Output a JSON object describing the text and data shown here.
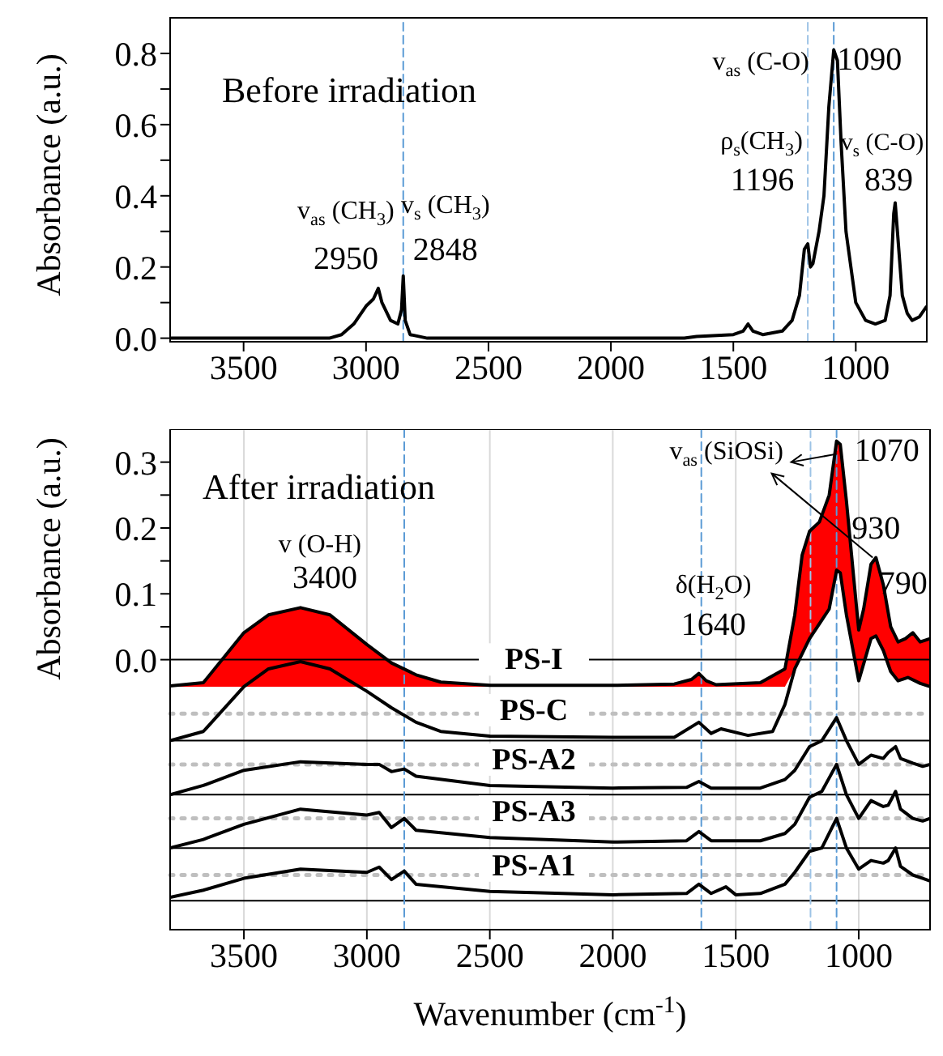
{
  "chart_data": [
    {
      "type": "line",
      "ylabel": "Absorbance (a.u.)",
      "xlim": [
        3800,
        710
      ],
      "xticks": [
        3500,
        3000,
        2500,
        2000,
        1500,
        1000
      ],
      "ylim": [
        -0.01,
        0.9
      ],
      "yticks": [
        {
          "value": 0,
          "label": "0.0"
        },
        {
          "value": 0.1,
          "label": null
        },
        {
          "value": 0.2,
          "label": "0.2"
        },
        {
          "value": 0.3,
          "label": null
        },
        {
          "value": 0.4,
          "label": "0.4"
        },
        {
          "value": 0.5,
          "label": null
        },
        {
          "value": 0.6,
          "label": "0.6"
        },
        {
          "value": 0.7,
          "label": null
        },
        {
          "value": 0.8,
          "label": "0.8"
        }
      ],
      "x": [
        3800,
        3500,
        3150,
        3100,
        3050,
        3000,
        2970,
        2950,
        2935,
        2900,
        2870,
        2855,
        2848,
        2840,
        2820,
        2750,
        2000,
        1700,
        1650,
        1500,
        1460,
        1440,
        1420,
        1380,
        1300,
        1260,
        1230,
        1210,
        1196,
        1185,
        1175,
        1150,
        1130,
        1110,
        1090,
        1075,
        1060,
        1040,
        1000,
        960,
        920,
        880,
        860,
        845,
        839,
        830,
        810,
        790,
        770,
        740,
        720,
        710
      ],
      "series": [
        {
          "color": "#000000",
          "values": [
            0.0,
            0.0,
            0.0,
            0.01,
            0.04,
            0.09,
            0.11,
            0.14,
            0.1,
            0.05,
            0.04,
            0.08,
            0.175,
            0.05,
            0.01,
            0.0,
            0.0,
            0.0,
            0.005,
            0.01,
            0.02,
            0.04,
            0.02,
            0.01,
            0.02,
            0.05,
            0.12,
            0.25,
            0.265,
            0.2,
            0.21,
            0.3,
            0.4,
            0.65,
            0.81,
            0.78,
            0.55,
            0.3,
            0.1,
            0.05,
            0.04,
            0.05,
            0.12,
            0.35,
            0.38,
            0.3,
            0.12,
            0.07,
            0.05,
            0.06,
            0.08,
            0.09
          ]
        }
      ],
      "ref_lines": [
        {
          "axis": "x",
          "value": 2848,
          "color": "#5b9bd5",
          "line_style": "dashed"
        },
        {
          "axis": "x",
          "value": 1196,
          "color": "#9dc3e6",
          "line_style": "dashed"
        },
        {
          "axis": "x",
          "value": 1090,
          "color": "#5b9bd5",
          "line_style": "dashed"
        }
      ],
      "annotations": [
        "Before irradiation",
        {
          "text": "v$_{as}$ (CH$_{3}$)",
          "x": 2950,
          "y": 0.14
        },
        {
          "text": "2950",
          "x": 2950,
          "y": 0.14
        },
        {
          "text": "v$_{s}$ (CH$_{3}$)",
          "x": 2848,
          "y": 0.175
        },
        {
          "text": "2848",
          "x": 2848,
          "y": 0.175
        },
        "ρ$_{s}$(CH$_{3}$)",
        {
          "text": "1196",
          "x": 1196,
          "y": 0.265
        },
        {
          "text": "v$_{as}$ (C-O)",
          "x": 1090,
          "y": 0.81
        },
        {
          "text": "1090",
          "x": 1090,
          "y": 0.81
        },
        {
          "text": "v$_{s}$ (C-O)",
          "x": 839,
          "y": 0.38
        },
        {
          "text": "839",
          "x": 839,
          "y": 0.38
        }
      ]
    },
    {
      "type": "line",
      "xlabel": "Wavenumber (cm$^{-1}$)",
      "ylabel": "Absorbance (a.u.)",
      "xlim": [
        3800,
        710
      ],
      "xticks": [
        3500,
        3000,
        2500,
        2000,
        1500,
        1000
      ],
      "ylim": [
        -0.41,
        0.35
      ],
      "grid": "x",
      "yticks": [
        {
          "value": 0,
          "label": "0.0"
        },
        {
          "value": 0.05,
          "label": null
        },
        {
          "value": 0.1,
          "label": "0.1"
        },
        {
          "value": 0.15,
          "label": null
        },
        {
          "value": 0.2,
          "label": "0.2"
        },
        {
          "value": 0.25,
          "label": null
        },
        {
          "value": 0.3,
          "label": "0.3"
        }
      ],
      "x": [
        3800,
        3665,
        3500,
        3400,
        3270,
        3150,
        3000,
        2900,
        2800,
        2700,
        2500,
        2000,
        1750,
        1680,
        1650,
        1620,
        1580,
        1400,
        1300,
        1260,
        1230,
        1200,
        1160,
        1120,
        1090,
        1075,
        1050,
        1020,
        1000,
        980,
        950,
        930,
        900,
        870,
        840,
        810,
        780,
        750,
        710
      ],
      "series": [
        {
          "name": "PS-I",
          "color": "#000000",
          "values": [
            -0.04,
            -0.035,
            0.041,
            0.068,
            0.079,
            0.068,
            0.023,
            -0.005,
            -0.023,
            -0.034,
            -0.039,
            -0.039,
            -0.037,
            -0.03,
            -0.021,
            -0.032,
            -0.038,
            -0.035,
            -0.014,
            0.068,
            0.159,
            0.195,
            0.209,
            0.25,
            0.332,
            0.327,
            0.241,
            0.123,
            0.045,
            0.077,
            0.145,
            0.155,
            0.114,
            0.05,
            0.027,
            0.032,
            0.041,
            0.027,
            0.032
          ],
          "upper": [
            -0.04,
            -0.035,
            0.041,
            0.068,
            0.079,
            0.068,
            0.023,
            -0.005,
            -0.023,
            -0.034,
            -0.039,
            -0.039,
            -0.037,
            -0.03,
            -0.021,
            -0.032,
            -0.038,
            -0.035,
            -0.014,
            0.068,
            0.159,
            0.195,
            0.209,
            0.25,
            0.332,
            0.327,
            0.241,
            0.123,
            0.045,
            0.077,
            0.145,
            0.155,
            0.114,
            0.05,
            0.027,
            0.032,
            0.041,
            0.027,
            0.032
          ],
          "lower": [
            -0.041,
            -0.041,
            -0.041,
            -0.041,
            -0.041,
            -0.041,
            -0.041,
            -0.041,
            -0.041,
            -0.041,
            -0.041,
            -0.041,
            -0.041,
            -0.041,
            -0.041,
            -0.041,
            -0.041,
            -0.041,
            -0.041,
            -0.014,
            0.01,
            0.032,
            0.055,
            0.077,
            0.136,
            0.132,
            0.068,
            0.0,
            -0.032,
            0.0,
            0.032,
            0.036,
            0.014,
            -0.018,
            -0.032,
            -0.028,
            -0.031,
            -0.036,
            -0.041
          ]
        },
        {
          "name": "PS-C",
          "color": "#000000",
          "x": [
            3800,
            3665,
            3500,
            3400,
            3270,
            3150,
            3000,
            2900,
            2800,
            2700,
            2500,
            2000,
            1750,
            1650,
            1600,
            1560,
            1450,
            1350,
            1300,
            1260,
            1200,
            1120,
            1090,
            1075,
            1050,
            1000,
            950,
            930,
            900,
            870,
            840,
            800,
            750,
            710
          ],
          "values": [
            -0.123,
            -0.109,
            -0.041,
            -0.014,
            -0.003,
            -0.014,
            -0.048,
            -0.073,
            -0.095,
            -0.109,
            -0.116,
            -0.118,
            -0.118,
            -0.095,
            -0.112,
            -0.105,
            -0.115,
            -0.109,
            -0.068,
            -0.014,
            0.032,
            0.077,
            0.136,
            0.132,
            0.068,
            -0.032,
            0.032,
            0.036,
            0.014,
            -0.018,
            -0.032,
            -0.027,
            -0.036,
            -0.041
          ]
        },
        {
          "name": "PS-A2",
          "color": "#000000",
          "x": [
            3800,
            3665,
            3500,
            3270,
            3000,
            2950,
            2900,
            2848,
            2800,
            2500,
            2000,
            1700,
            1650,
            1600,
            1400,
            1300,
            1260,
            1200,
            1150,
            1090,
            1050,
            1000,
            950,
            900,
            880,
            850,
            830,
            780,
            740,
            710
          ],
          "values": [
            -0.205,
            -0.191,
            -0.168,
            -0.155,
            -0.159,
            -0.159,
            -0.17,
            -0.166,
            -0.177,
            -0.191,
            -0.195,
            -0.194,
            -0.185,
            -0.195,
            -0.195,
            -0.182,
            -0.168,
            -0.132,
            -0.123,
            -0.088,
            -0.123,
            -0.159,
            -0.145,
            -0.15,
            -0.141,
            -0.132,
            -0.15,
            -0.157,
            -0.162,
            -0.159
          ]
        },
        {
          "name": "PS-A3",
          "color": "#000000",
          "x": [
            3800,
            3665,
            3500,
            3270,
            3000,
            2950,
            2900,
            2848,
            2800,
            2500,
            2000,
            1700,
            1650,
            1600,
            1400,
            1300,
            1260,
            1200,
            1150,
            1090,
            1050,
            1000,
            950,
            900,
            880,
            850,
            830,
            780,
            740,
            710
          ],
          "values": [
            -0.286,
            -0.273,
            -0.25,
            -0.227,
            -0.236,
            -0.232,
            -0.255,
            -0.241,
            -0.259,
            -0.27,
            -0.277,
            -0.275,
            -0.261,
            -0.275,
            -0.275,
            -0.264,
            -0.25,
            -0.209,
            -0.2,
            -0.159,
            -0.205,
            -0.241,
            -0.214,
            -0.223,
            -0.221,
            -0.2,
            -0.227,
            -0.241,
            -0.245,
            -0.241
          ]
        },
        {
          "name": "PS-A1",
          "color": "#000000",
          "x": [
            3800,
            3665,
            3500,
            3270,
            3000,
            2950,
            2900,
            2848,
            2800,
            2500,
            2000,
            1700,
            1650,
            1600,
            1540,
            1500,
            1400,
            1300,
            1260,
            1200,
            1150,
            1090,
            1050,
            1000,
            950,
            900,
            880,
            850,
            830,
            780,
            740,
            710
          ],
          "values": [
            -0.361,
            -0.35,
            -0.332,
            -0.318,
            -0.323,
            -0.315,
            -0.334,
            -0.321,
            -0.341,
            -0.352,
            -0.357,
            -0.355,
            -0.341,
            -0.355,
            -0.345,
            -0.357,
            -0.355,
            -0.341,
            -0.323,
            -0.291,
            -0.286,
            -0.241,
            -0.286,
            -0.318,
            -0.305,
            -0.309,
            -0.305,
            -0.286,
            -0.314,
            -0.327,
            -0.332,
            -0.336
          ]
        }
      ],
      "ref_lines": [
        {
          "axis": "y",
          "value": 0,
          "color": "#000000",
          "line_style": "solid"
        },
        {
          "axis": "y",
          "value": -0.123,
          "color": "#000000",
          "line_style": "solid"
        },
        {
          "axis": "y",
          "value": -0.205,
          "color": "#000000",
          "line_style": "solid"
        },
        {
          "axis": "y",
          "value": -0.286,
          "color": "#000000",
          "line_style": "solid"
        },
        {
          "axis": "y",
          "value": -0.366,
          "color": "#000000",
          "line_style": "solid"
        },
        {
          "axis": "y",
          "value": -0.082,
          "color": "#bfbfbf",
          "line_style": "dotted"
        },
        {
          "axis": "y",
          "value": -0.159,
          "color": "#bfbfbf",
          "line_style": "dotted"
        },
        {
          "axis": "y",
          "value": -0.241,
          "color": "#bfbfbf",
          "line_style": "dotted"
        },
        {
          "axis": "y",
          "value": -0.327,
          "color": "#bfbfbf",
          "line_style": "dotted"
        },
        {
          "axis": "x",
          "value": 2848,
          "color": "#5b9bd5",
          "line_style": "dashed"
        },
        {
          "axis": "x",
          "value": 1196,
          "color": "#9dc3e6",
          "line_style": "dashed"
        },
        {
          "axis": "x",
          "value": 1090,
          "color": "#5b9bd5",
          "line_style": "dashed"
        },
        {
          "axis": "x",
          "value": 1640,
          "color": "#5b9bd5",
          "line_style": "dashed"
        }
      ],
      "annotations": [
        "After irradiation",
        {
          "text": "v (O-H)",
          "x": 3270,
          "y": 0.079
        },
        {
          "text": "3400",
          "x": 3270,
          "y": 0.079
        },
        {
          "text": "δ(H$_{2}$O)",
          "x": 1650,
          "y": -0.021
        },
        {
          "text": "1640",
          "x": 1650,
          "y": -0.021
        },
        {
          "text": "v$_{as}$ (SiOSi)",
          "x": 1090,
          "y": 0.332
        },
        {
          "text": "1070",
          "x": 1090,
          "y": 0.332
        },
        {
          "text": "930",
          "x": 930,
          "y": 0.155
        },
        {
          "text": "790",
          "x": 780,
          "y": 0.041
        }
      ]
    }
  ]
}
